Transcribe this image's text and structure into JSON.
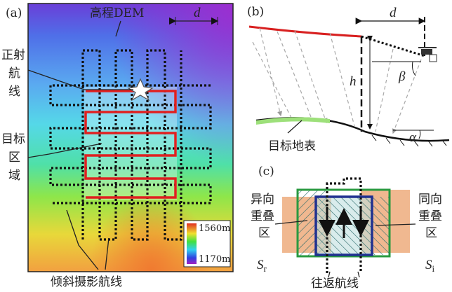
{
  "panel_a": {
    "tag": "(a)",
    "dem_label": "高程DEM",
    "spacing": "d",
    "ortho_route": [
      "正射",
      "航",
      "线"
    ],
    "target_area": [
      "目标",
      "区",
      "域"
    ],
    "colorbar_max": "1560m",
    "colorbar_min": "1170m",
    "oblique_route": "倾斜摄影航线"
  },
  "panel_b": {
    "tag": "(b)",
    "spacing": "d",
    "height": "h",
    "view_angle": "β",
    "slope_angle": "α",
    "ground": "目标地表"
  },
  "panel_c": {
    "tag": "(c)",
    "opposite_overlap": [
      "异向",
      "重叠",
      "区"
    ],
    "opposite_symbol": {
      "main": "S",
      "sub": "r"
    },
    "same_overlap": [
      "同向",
      "重叠",
      "区"
    ],
    "same_symbol": {
      "main": "S",
      "sub": "i"
    },
    "round_trip": "往返航线"
  }
}
